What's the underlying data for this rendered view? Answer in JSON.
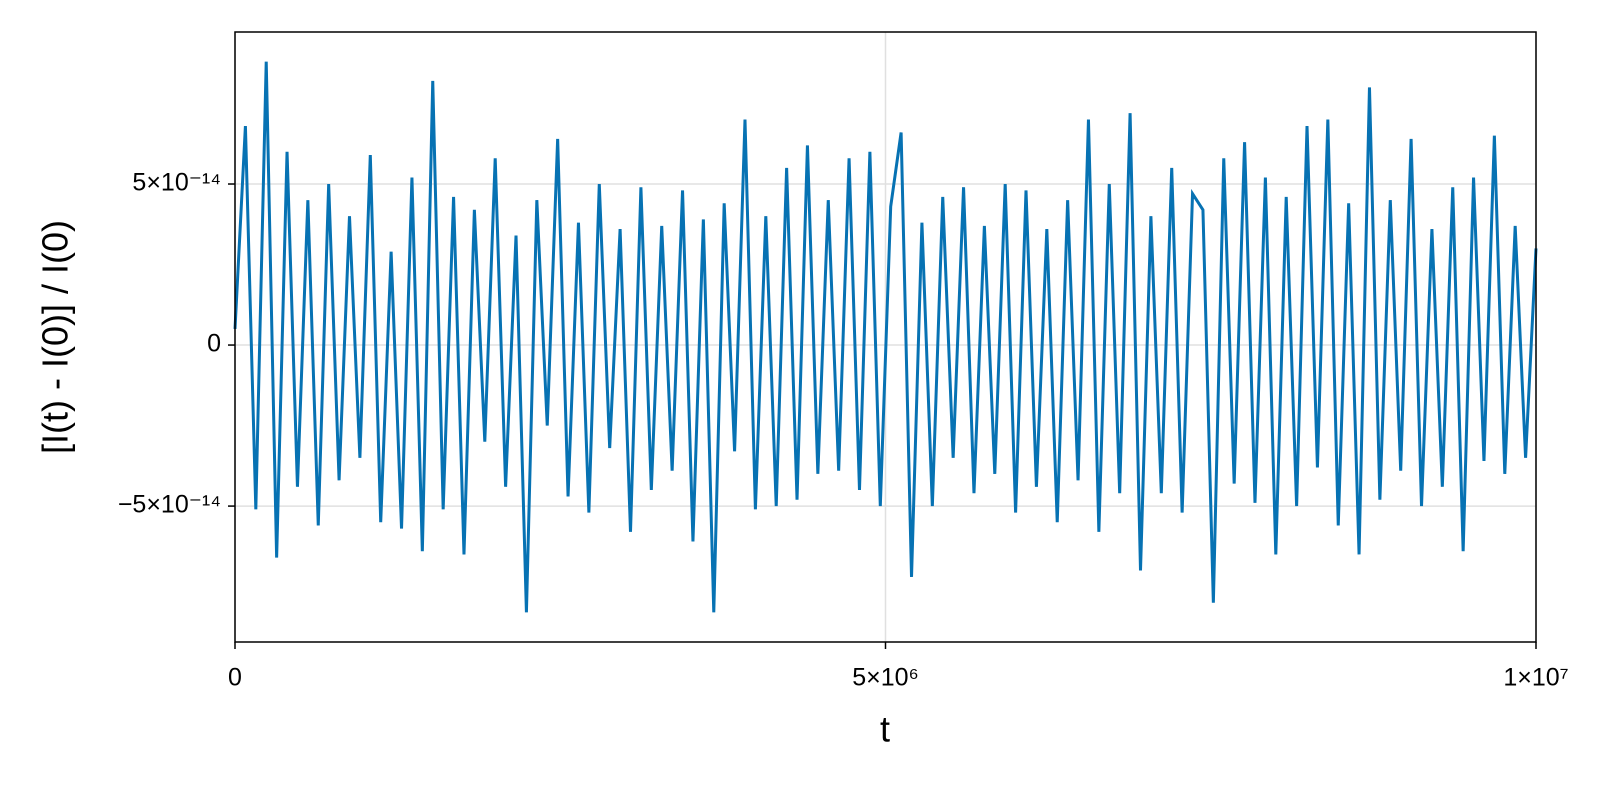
{
  "chart_data": {
    "type": "line",
    "xlabel": "t",
    "ylabel": "[I(t) - I(0)] / I(0)",
    "xlim": [
      0,
      10000000
    ],
    "ylim": [
      -9.22e-14,
      9.72e-14
    ],
    "xticks": [
      0,
      {
        "value": 5000000,
        "label": "5×10⁶"
      },
      {
        "value": 10000000,
        "label": "1×10⁷"
      }
    ],
    "yticks": [
      {
        "value": -5e-14,
        "label": "−5×10⁻¹⁴"
      },
      0,
      {
        "value": 5e-14,
        "label": "5×10⁻¹⁴"
      }
    ],
    "grid": true,
    "x": [
      0,
      80000,
      160000,
      240000,
      320000,
      400000,
      480000,
      560000,
      640000,
      720000,
      800000,
      880000,
      960000,
      1040000,
      1120000,
      1200000,
      1280000,
      1360000,
      1440000,
      1520000,
      1600000,
      1680000,
      1760000,
      1840000,
      1920000,
      2000000,
      2080000,
      2160000,
      2240000,
      2320000,
      2400000,
      2480000,
      2560000,
      2640000,
      2720000,
      2800000,
      2880000,
      2960000,
      3040000,
      3120000,
      3200000,
      3280000,
      3360000,
      3440000,
      3520000,
      3600000,
      3680000,
      3760000,
      3840000,
      3920000,
      4000000,
      4080000,
      4160000,
      4240000,
      4320000,
      4400000,
      4480000,
      4560000,
      4640000,
      4720000,
      4800000,
      4880000,
      4960000,
      5040000,
      5120000,
      5200000,
      5280000,
      5360000,
      5440000,
      5520000,
      5600000,
      5680000,
      5760000,
      5840000,
      5920000,
      6000000,
      6080000,
      6160000,
      6240000,
      6320000,
      6400000,
      6480000,
      6560000,
      6640000,
      6720000,
      6800000,
      6880000,
      6960000,
      7040000,
      7120000,
      7200000,
      7280000,
      7360000,
      7440000,
      7520000,
      7600000,
      7680000,
      7760000,
      7840000,
      7920000,
      8000000,
      8080000,
      8160000,
      8240000,
      8320000,
      8400000,
      8480000,
      8560000,
      8640000,
      8720000,
      8800000,
      8880000,
      8960000,
      9040000,
      9120000,
      9200000,
      9280000,
      9360000,
      9440000,
      9520000,
      9600000,
      9680000,
      9760000,
      9840000,
      9920000,
      10000000
    ],
    "series": [
      {
        "color": "#0772b3",
        "values": [
          5e-15,
          6.8e-14,
          -5.1e-14,
          8.8e-14,
          -6.6e-14,
          6e-14,
          -4.4e-14,
          4.5e-14,
          -5.6e-14,
          5e-14,
          -4.2e-14,
          4e-14,
          -3.5e-14,
          5.9e-14,
          -5.5e-14,
          2.9e-14,
          -5.7e-14,
          5.2e-14,
          -6.4e-14,
          8.2e-14,
          -5.1e-14,
          4.6e-14,
          -6.5e-14,
          4.2e-14,
          -3e-14,
          5.8e-14,
          -4.4e-14,
          3.4e-14,
          -8.3e-14,
          4.5e-14,
          -2.5e-14,
          6.4e-14,
          -4.7e-14,
          3.8e-14,
          -5.2e-14,
          5e-14,
          -3.2e-14,
          3.6e-14,
          -5.8e-14,
          4.9e-14,
          -4.5e-14,
          3.7e-14,
          -3.9e-14,
          4.8e-14,
          -6.1e-14,
          3.9e-14,
          -8.3e-14,
          4.4e-14,
          -3.3e-14,
          7e-14,
          -5.1e-14,
          4e-14,
          -5e-14,
          5.5e-14,
          -4.8e-14,
          6.2e-14,
          -4e-14,
          4.5e-14,
          -3.9e-14,
          5.8e-14,
          -4.5e-14,
          6e-14,
          -5e-14,
          4.3e-14,
          6.6e-14,
          -7.2e-14,
          3.8e-14,
          -5e-14,
          4.6e-14,
          -3.5e-14,
          4.9e-14,
          -4.6e-14,
          3.7e-14,
          -4e-14,
          5e-14,
          -5.2e-14,
          4.8e-14,
          -4.4e-14,
          3.6e-14,
          -5.5e-14,
          4.5e-14,
          -4.2e-14,
          7e-14,
          -5.8e-14,
          5e-14,
          -4.6e-14,
          7.2e-14,
          -7e-14,
          4e-14,
          -4.6e-14,
          5.5e-14,
          -5.2e-14,
          4.7e-14,
          4.2e-14,
          -8e-14,
          5.8e-14,
          -4.3e-14,
          6.3e-14,
          -4.9e-14,
          5.2e-14,
          -6.5e-14,
          4.6e-14,
          -5e-14,
          6.8e-14,
          -3.8e-14,
          7e-14,
          -5.6e-14,
          4.4e-14,
          -6.5e-14,
          8e-14,
          -4.8e-14,
          4.5e-14,
          -3.9e-14,
          6.4e-14,
          -5e-14,
          3.6e-14,
          -4.4e-14,
          4.9e-14,
          -6.4e-14,
          5.2e-14,
          -3.6e-14,
          6.5e-14,
          -4e-14,
          3.7e-14,
          -3.5e-14,
          3e-14
        ]
      }
    ]
  }
}
